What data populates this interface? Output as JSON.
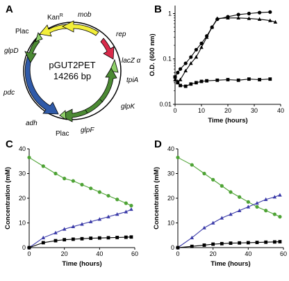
{
  "panels": {
    "A": {
      "letter": "A",
      "plasmid_name": "pGUT2PET",
      "plasmid_size": "14266 bp",
      "labels": {
        "kanR": "Kan",
        "kanR_sup": "R",
        "mob": "mob",
        "rep": "rep",
        "lacz": "lacZ α",
        "tpiA": "tpiA",
        "glpK": "glpK",
        "glpF": "glpF",
        "plac_bottom": "Plac",
        "adh": "adh",
        "pdc": "pdc",
        "glpD": "glpD",
        "plac_left": "Plac"
      },
      "colors": {
        "kan_mob": "#f3ef3a",
        "rep": "#d92a4a",
        "lacz": "#8fd16a",
        "glp": "#4c8a34",
        "pdc_adh": "#2f5aa8",
        "plac": "#8fd16a",
        "backbone": "#000000"
      }
    },
    "B": {
      "letter": "B"
    },
    "C": {
      "letter": "C"
    },
    "D": {
      "letter": "D"
    }
  },
  "chart_data": [
    {
      "panel": "B",
      "type": "line",
      "xlabel": "Time (hours)",
      "ylabel": "O.D. (600 nm)",
      "xlim": [
        0,
        40
      ],
      "ylim": [
        0.01,
        1.5
      ],
      "yscale": "log",
      "xticks": [
        "0",
        "10",
        "20",
        "30",
        "40"
      ],
      "yticks": [
        "0.01",
        "0.1",
        "1"
      ],
      "series": [
        {
          "marker": "circle",
          "color": "#000000",
          "x": [
            0,
            1,
            2,
            4,
            6,
            8,
            10,
            12,
            14,
            16,
            20,
            24,
            28,
            32,
            36
          ],
          "y": [
            0.04,
            0.05,
            0.06,
            0.08,
            0.11,
            0.16,
            0.22,
            0.32,
            0.5,
            0.75,
            0.85,
            0.95,
            1.0,
            1.05,
            1.08
          ]
        },
        {
          "marker": "triangle",
          "color": "#000000",
          "x": [
            0,
            1,
            2,
            4,
            6,
            8,
            10,
            12,
            14,
            16,
            20,
            24,
            28,
            32,
            36,
            38
          ],
          "y": [
            0.035,
            0.032,
            0.035,
            0.055,
            0.08,
            0.11,
            0.18,
            0.3,
            0.5,
            0.78,
            0.8,
            0.8,
            0.78,
            0.75,
            0.7,
            0.65
          ]
        },
        {
          "marker": "square",
          "color": "#000000",
          "x": [
            0,
            1,
            2,
            4,
            6,
            8,
            10,
            12,
            16,
            20,
            24,
            28,
            32,
            36
          ],
          "y": [
            0.04,
            0.03,
            0.026,
            0.025,
            0.028,
            0.03,
            0.032,
            0.033,
            0.034,
            0.035,
            0.034,
            0.036,
            0.035,
            0.036
          ]
        }
      ]
    },
    {
      "panel": "C",
      "type": "line",
      "xlabel": "Time (hours)",
      "ylabel": "Concentration (mM)",
      "xlim": [
        0,
        60
      ],
      "ylim": [
        0,
        40
      ],
      "xticks": [
        "0",
        "20",
        "40",
        "60"
      ],
      "yticks": [
        "0",
        "10",
        "20",
        "30",
        "40"
      ],
      "series": [
        {
          "marker": "circle",
          "color": "#4ea335",
          "x": [
            0,
            8,
            15,
            20,
            25,
            30,
            35,
            40,
            45,
            50,
            55,
            58
          ],
          "y": [
            36.5,
            33.0,
            30.0,
            28.0,
            27.0,
            25.5,
            24.0,
            22.5,
            21.0,
            19.5,
            18.0,
            17.0
          ]
        },
        {
          "marker": "triangle",
          "color": "#3a3aa8",
          "x": [
            0,
            8,
            15,
            20,
            25,
            30,
            35,
            40,
            45,
            50,
            55,
            58
          ],
          "y": [
            0,
            4.0,
            6.0,
            7.5,
            8.5,
            9.5,
            10.5,
            11.5,
            12.5,
            13.5,
            14.5,
            15.5
          ]
        },
        {
          "marker": "square",
          "color": "#000000",
          "x": [
            0,
            8,
            15,
            20,
            25,
            30,
            35,
            40,
            45,
            50,
            55,
            58
          ],
          "y": [
            0,
            2.0,
            2.8,
            3.2,
            3.4,
            3.6,
            3.8,
            3.9,
            4.0,
            4.1,
            4.2,
            4.3
          ]
        }
      ]
    },
    {
      "panel": "D",
      "type": "line",
      "xlabel": "Time (hours)",
      "ylabel": "Concentration (mM)",
      "xlim": [
        0,
        60
      ],
      "ylim": [
        0,
        40
      ],
      "xticks": [
        "0",
        "20",
        "40",
        "60"
      ],
      "yticks": [
        "0",
        "10",
        "20",
        "30",
        "40"
      ],
      "series": [
        {
          "marker": "circle",
          "color": "#4ea335",
          "x": [
            0,
            8,
            15,
            20,
            25,
            30,
            35,
            40,
            45,
            50,
            55,
            58
          ],
          "y": [
            36.5,
            33.5,
            30.0,
            27.5,
            25.0,
            22.5,
            20.5,
            18.5,
            16.5,
            15.0,
            13.5,
            12.5
          ]
        },
        {
          "marker": "triangle",
          "color": "#3a3aa8",
          "x": [
            0,
            8,
            15,
            20,
            25,
            30,
            35,
            40,
            45,
            50,
            55,
            58
          ],
          "y": [
            0,
            4.0,
            8.0,
            10.0,
            12.0,
            13.5,
            15.0,
            16.5,
            18.0,
            19.5,
            20.5,
            21.3
          ]
        },
        {
          "marker": "square",
          "color": "#000000",
          "x": [
            0,
            8,
            15,
            20,
            25,
            30,
            35,
            40,
            45,
            50,
            55,
            58
          ],
          "y": [
            0,
            0.5,
            1.0,
            1.4,
            1.6,
            1.8,
            1.9,
            2.0,
            2.1,
            2.2,
            2.3,
            2.4
          ]
        }
      ]
    }
  ]
}
